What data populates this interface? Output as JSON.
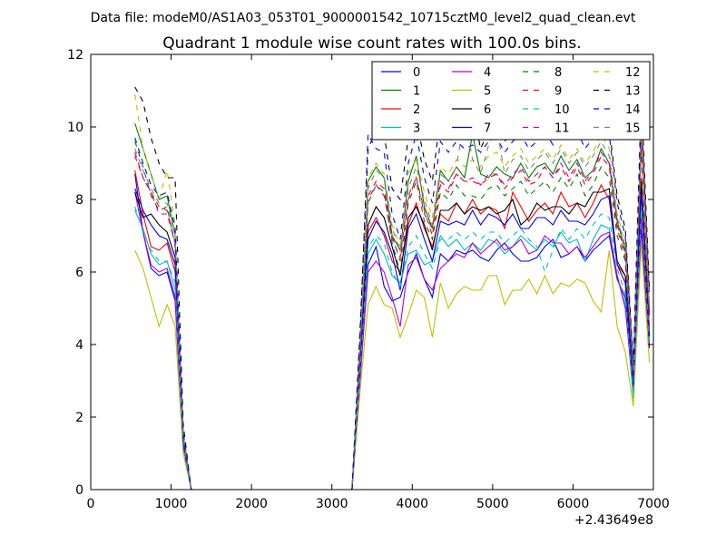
{
  "figure": {
    "suptitle": "Data file: modeM0/AS1A03_053T01_9000001542_10715cztM0_level2_quad_clean.evt"
  },
  "chart_data": {
    "type": "line",
    "title": "Quadrant 1 module wise count rates with 100.0s bins.",
    "xlabel": "",
    "ylabel": "",
    "x_offset_label": "+2.43649e8",
    "xlim": [
      0,
      7000
    ],
    "ylim": [
      0,
      12
    ],
    "xticks": [
      0,
      1000,
      2000,
      3000,
      4000,
      5000,
      6000,
      7000
    ],
    "yticks": [
      0,
      2,
      4,
      6,
      8,
      10,
      12
    ],
    "grid": false,
    "legend": {
      "placement": "top-right",
      "columns": 4
    },
    "x": [
      550,
      650,
      750,
      850,
      950,
      1050,
      1150,
      1250,
      2250,
      3250,
      3350,
      3450,
      3550,
      3650,
      3750,
      3850,
      3950,
      4050,
      4150,
      4250,
      4350,
      4450,
      4550,
      4650,
      4750,
      4850,
      4950,
      5050,
      5150,
      5250,
      5350,
      5450,
      5550,
      5650,
      5750,
      5850,
      5950,
      6050,
      6150,
      6250,
      6350,
      6450,
      6550,
      6650,
      6750,
      6850,
      6950
    ],
    "series": [
      {
        "name": "0",
        "color": "#0000ff",
        "dash": "solid",
        "values": [
          8.7,
          7.1,
          6.1,
          5.9,
          6.0,
          5.2,
          1.2,
          0,
          0,
          0,
          3.3,
          6.2,
          6.7,
          5.6,
          5.2,
          5.3,
          6.0,
          6.5,
          5.8,
          5.3,
          6.5,
          6.3,
          6.6,
          6.5,
          6.6,
          6.4,
          6.3,
          6.6,
          6.8,
          6.5,
          6.3,
          6.3,
          6.4,
          6.7,
          6.9,
          6.4,
          6.5,
          6.7,
          6.3,
          6.6,
          6.8,
          7.0,
          5.8,
          5.3,
          3.0,
          7.2,
          3.9
        ]
      },
      {
        "name": "1",
        "color": "#008000",
        "dash": "solid",
        "values": [
          10.1,
          9.4,
          8.7,
          8.0,
          8.1,
          7.0,
          1.5,
          0,
          0,
          0,
          3.9,
          8.5,
          8.9,
          8.6,
          7.0,
          6.6,
          8.5,
          9.2,
          7.8,
          7.2,
          8.8,
          8.5,
          8.9,
          8.6,
          9.8,
          8.7,
          8.6,
          8.9,
          8.7,
          8.6,
          9.0,
          8.6,
          8.9,
          9.0,
          8.7,
          9.2,
          8.8,
          9.1,
          8.6,
          8.8,
          9.4,
          9.0,
          7.4,
          6.6,
          3.2,
          9.9,
          4.9
        ]
      },
      {
        "name": "2",
        "color": "#ff0000",
        "dash": "solid",
        "values": [
          8.8,
          7.6,
          6.7,
          6.6,
          6.8,
          6.0,
          1.3,
          0,
          0,
          0,
          3.5,
          7.1,
          7.5,
          7.0,
          6.3,
          6.0,
          7.3,
          7.9,
          7.2,
          6.7,
          7.6,
          7.4,
          7.9,
          7.6,
          8.0,
          7.6,
          7.8,
          7.7,
          7.2,
          8.2,
          7.8,
          7.4,
          7.7,
          7.9,
          7.6,
          8.2,
          7.8,
          7.9,
          7.5,
          7.9,
          8.4,
          8.0,
          6.2,
          5.9,
          3.1,
          8.6,
          4.4
        ]
      },
      {
        "name": "3",
        "color": "#00bfbf",
        "dash": "solid",
        "values": [
          7.7,
          7.2,
          6.5,
          6.2,
          6.3,
          5.5,
          1.2,
          0,
          0,
          0,
          3.2,
          6.5,
          6.9,
          6.5,
          5.9,
          5.7,
          6.5,
          6.6,
          6.2,
          6.3,
          7.0,
          6.7,
          6.9,
          6.6,
          6.8,
          6.6,
          6.9,
          6.8,
          6.5,
          6.7,
          7.0,
          6.8,
          6.6,
          6.9,
          6.7,
          7.1,
          6.8,
          6.9,
          6.3,
          6.9,
          7.3,
          7.2,
          5.9,
          5.1,
          2.5,
          7.6,
          4.0
        ]
      },
      {
        "name": "4",
        "color": "#bf00bf",
        "dash": "solid",
        "values": [
          8.2,
          7.1,
          6.2,
          6.0,
          6.1,
          5.3,
          1.2,
          0,
          0,
          0,
          3.0,
          6.0,
          6.3,
          6.0,
          5.3,
          4.5,
          6.2,
          6.4,
          5.8,
          5.5,
          6.1,
          6.3,
          6.5,
          6.4,
          6.8,
          6.5,
          6.7,
          6.9,
          6.6,
          6.7,
          6.9,
          6.5,
          6.6,
          7.0,
          6.8,
          6.8,
          6.5,
          6.7,
          6.4,
          6.7,
          7.0,
          7.1,
          5.9,
          5.0,
          2.8,
          7.5,
          4.0
        ]
      },
      {
        "name": "5",
        "color": "#bfbf00",
        "dash": "solid",
        "values": [
          6.6,
          6.1,
          5.3,
          4.5,
          5.1,
          4.5,
          1.0,
          0,
          0,
          0,
          2.7,
          5.1,
          5.6,
          5.1,
          5.0,
          4.2,
          4.8,
          5.5,
          5.3,
          4.2,
          5.7,
          5.0,
          5.4,
          5.6,
          5.5,
          5.5,
          5.9,
          5.9,
          5.1,
          5.5,
          5.5,
          5.8,
          5.4,
          5.9,
          5.4,
          5.7,
          5.6,
          5.8,
          5.7,
          5.2,
          4.9,
          6.6,
          4.5,
          3.8,
          2.3,
          6.8,
          3.5
        ]
      },
      {
        "name": "6",
        "color": "#000000",
        "dash": "solid",
        "values": [
          8.2,
          7.5,
          7.6,
          7.3,
          7.1,
          6.4,
          1.4,
          0,
          0,
          0,
          3.4,
          7.3,
          7.8,
          7.5,
          6.7,
          5.9,
          7.5,
          7.8,
          7.3,
          6.6,
          7.7,
          7.7,
          7.9,
          7.6,
          7.8,
          7.7,
          7.8,
          7.6,
          7.7,
          8.0,
          7.3,
          7.5,
          7.9,
          7.7,
          7.8,
          7.8,
          7.6,
          7.9,
          7.8,
          8.2,
          8.2,
          8.3,
          6.3,
          5.9,
          3.0,
          8.5,
          4.2
        ]
      },
      {
        "name": "7",
        "color": "#0000ff",
        "dash": "solid",
        "values": [
          8.3,
          7.7,
          7.3,
          7.0,
          6.9,
          6.2,
          1.3,
          0,
          0,
          0,
          3.3,
          6.9,
          7.4,
          7.1,
          6.5,
          5.5,
          7.2,
          7.6,
          6.9,
          6.3,
          7.4,
          7.3,
          7.4,
          7.3,
          7.7,
          7.3,
          7.6,
          7.5,
          7.3,
          7.6,
          7.2,
          7.2,
          7.5,
          7.5,
          7.3,
          7.7,
          7.4,
          7.4,
          7.3,
          7.6,
          8.0,
          8.1,
          6.2,
          5.7,
          2.9,
          8.2,
          4.1
        ]
      },
      {
        "name": "8",
        "color": "#008000",
        "dash": "dashed",
        "values": [
          9.6,
          8.9,
          8.1,
          7.7,
          7.8,
          6.7,
          1.5,
          0,
          0,
          0,
          3.7,
          7.9,
          8.4,
          8.2,
          6.8,
          6.0,
          7.9,
          8.5,
          7.4,
          6.9,
          8.2,
          8.0,
          8.4,
          8.1,
          8.1,
          8.0,
          8.3,
          8.4,
          8.1,
          8.3,
          8.5,
          8.1,
          8.3,
          8.5,
          8.2,
          8.6,
          8.3,
          8.7,
          8.1,
          8.4,
          8.9,
          8.6,
          7.0,
          6.3,
          3.1,
          9.4,
          4.7
        ]
      },
      {
        "name": "9",
        "color": "#ff0000",
        "dash": "dashed",
        "values": [
          9.3,
          8.6,
          8.2,
          7.8,
          7.7,
          6.8,
          1.5,
          0,
          0,
          0,
          3.7,
          8.1,
          8.5,
          8.3,
          7.0,
          6.3,
          8.0,
          8.6,
          7.7,
          7.0,
          8.4,
          8.2,
          8.7,
          8.5,
          8.5,
          8.4,
          8.6,
          8.7,
          8.3,
          8.6,
          8.8,
          8.4,
          8.5,
          8.9,
          8.6,
          8.9,
          8.5,
          8.9,
          8.4,
          8.7,
          9.2,
          8.9,
          7.2,
          6.4,
          3.2,
          9.6,
          4.8
        ]
      },
      {
        "name": "10",
        "color": "#00bfbf",
        "dash": "dashed",
        "values": [
          7.8,
          7.1,
          6.6,
          6.3,
          6.3,
          5.7,
          1.2,
          0,
          0,
          0,
          3.2,
          6.7,
          7.0,
          6.8,
          6.0,
          5.6,
          6.7,
          7.0,
          6.5,
          6.1,
          6.9,
          6.9,
          7.1,
          6.9,
          7.1,
          6.9,
          7.1,
          7.1,
          6.8,
          7.0,
          7.2,
          6.9,
          6.7,
          6.0,
          6.6,
          7.2,
          6.9,
          7.2,
          6.9,
          7.3,
          7.6,
          7.5,
          6.1,
          5.4,
          2.6,
          7.8,
          4.1
        ]
      },
      {
        "name": "11",
        "color": "#bf00bf",
        "dash": "dashed",
        "values": [
          9.2,
          8.6,
          8.2,
          7.6,
          7.6,
          6.8,
          1.5,
          0,
          0,
          0,
          3.7,
          8.0,
          8.4,
          8.1,
          6.9,
          6.4,
          8.1,
          8.6,
          7.6,
          7.2,
          8.5,
          8.3,
          8.7,
          8.5,
          8.6,
          8.4,
          8.7,
          8.7,
          8.4,
          8.7,
          8.9,
          8.5,
          8.7,
          8.9,
          8.6,
          9.0,
          8.6,
          9.0,
          8.5,
          8.8,
          9.3,
          9.0,
          7.3,
          6.5,
          3.2,
          9.7,
          4.9
        ]
      },
      {
        "name": "12",
        "color": "#bfbf00",
        "dash": "dashed",
        "values": [
          10.9,
          9.4,
          8.7,
          8.0,
          8.8,
          7.3,
          1.6,
          0,
          0,
          0,
          4.0,
          8.6,
          9.0,
          8.7,
          7.3,
          6.7,
          8.7,
          9.1,
          8.2,
          7.5,
          8.9,
          8.7,
          9.1,
          8.9,
          9.1,
          8.9,
          9.2,
          9.3,
          8.9,
          9.2,
          9.4,
          9.0,
          9.2,
          9.4,
          9.1,
          9.5,
          9.1,
          9.4,
          9.0,
          9.3,
          9.8,
          9.4,
          7.6,
          6.8,
          3.3,
          10.1,
          5.1
        ]
      },
      {
        "name": "13",
        "color": "#000000",
        "dash": "dashed",
        "values": [
          11.1,
          10.7,
          9.7,
          9.0,
          8.6,
          8.6,
          1.8,
          0,
          0,
          0,
          4.4,
          9.4,
          9.9,
          9.8,
          8.3,
          8.0,
          9.7,
          10.2,
          9.1,
          8.5,
          10.3,
          10.0,
          10.1,
          9.9,
          10.5,
          9.4,
          9.9,
          10.0,
          9.6,
          9.9,
          10.1,
          9.8,
          10.0,
          10.2,
          9.9,
          10.3,
          9.9,
          10.2,
          9.7,
          10.0,
          10.6,
          10.0,
          8.1,
          7.2,
          3.5,
          10.9,
          5.5
        ]
      },
      {
        "name": "14",
        "color": "#0000ff",
        "dash": "dashed",
        "values": [
          9.7,
          9.0,
          8.4,
          8.1,
          8.2,
          7.2,
          1.6,
          0,
          0,
          0,
          4.2,
          9.8,
          9.4,
          9.3,
          7.6,
          6.9,
          9.0,
          9.8,
          8.6,
          7.9,
          9.6,
          9.3,
          9.6,
          9.4,
          9.5,
          9.3,
          9.6,
          9.7,
          9.3,
          9.6,
          9.8,
          9.4,
          9.6,
          9.9,
          9.5,
          10.0,
          9.6,
          9.9,
          9.4,
          9.7,
          10.2,
          9.8,
          7.9,
          7.0,
          3.4,
          10.5,
          5.3
        ]
      },
      {
        "name": "15",
        "color": "#808080",
        "dash": "dashed",
        "values": [
          9.4,
          8.8,
          8.3,
          7.9,
          7.9,
          7.0,
          1.5,
          0,
          0,
          0,
          3.9,
          8.3,
          8.8,
          8.6,
          7.2,
          6.6,
          8.3,
          8.9,
          8.0,
          7.3,
          8.7,
          8.5,
          8.9,
          10.3,
          9.1,
          8.7,
          9.5,
          10.0,
          8.7,
          9.1,
          9.2,
          8.8,
          9.1,
          9.3,
          9.0,
          9.4,
          9.0,
          9.3,
          8.9,
          9.2,
          9.6,
          9.2,
          7.5,
          6.7,
          3.3,
          10.0,
          5.0
        ]
      }
    ]
  }
}
